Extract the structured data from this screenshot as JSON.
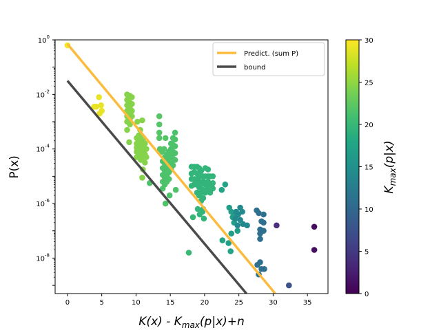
{
  "chart_data": {
    "type": "scatter",
    "title": "",
    "xlabel": "K(x) - K_max(p|x)+n",
    "ylabel": "P(x)",
    "yscale": "log",
    "xlim": [
      -1.8,
      38
    ],
    "ylim_log10": [
      -9.3,
      0
    ],
    "xticks": [
      0,
      5,
      10,
      15,
      20,
      25,
      30,
      35
    ],
    "yticks_log10": [
      0,
      -2,
      -4,
      -6,
      -8
    ],
    "legend": {
      "position": "top-right",
      "entries": [
        {
          "label": "Predict. (sum P)",
          "color": "#fbbc3d"
        },
        {
          "label": "bound",
          "color": "#4a4a4a"
        }
      ]
    },
    "colorbar": {
      "label": "K_max(p|x)",
      "range": [
        0,
        30
      ],
      "ticks": [
        0,
        5,
        10,
        15,
        20,
        25,
        30
      ],
      "colormap": "viridis"
    },
    "lines": [
      {
        "name": "Predict. (sum P)",
        "x": [
          0,
          30.3
        ],
        "log10_y": [
          -0.15,
          -9.3
        ]
      },
      {
        "name": "bound",
        "x": [
          0,
          26.1
        ],
        "log10_y": [
          -1.5,
          -9.3
        ]
      }
    ],
    "series": [
      {
        "name": "points",
        "columns": [
          "x",
          "log10_y",
          "kmax"
        ],
        "points": [
          [
            0,
            -0.2,
            29.5
          ],
          [
            4.2,
            -2.45,
            29
          ],
          [
            4.6,
            -2.1,
            29
          ],
          [
            4.9,
            -2.4,
            29
          ],
          [
            5.0,
            -2.6,
            29
          ],
          [
            4.7,
            -2.7,
            29
          ],
          [
            3.9,
            -2.45,
            29
          ],
          [
            8.7,
            -2.0,
            24.5
          ],
          [
            8.7,
            -2.2,
            24.5
          ],
          [
            8.7,
            -2.4,
            24.5
          ],
          [
            8.7,
            -2.6,
            24.5
          ],
          [
            8.7,
            -2.8,
            24.5
          ],
          [
            8.7,
            -3.0,
            24.5
          ],
          [
            8.7,
            -3.3,
            24.5
          ],
          [
            9.1,
            -2.05,
            24.5
          ],
          [
            9.1,
            -2.3,
            24.5
          ],
          [
            9.1,
            -2.5,
            24.5
          ],
          [
            9.1,
            -2.7,
            24.5
          ],
          [
            9.1,
            -2.9,
            24.5
          ],
          [
            9.1,
            -3.1,
            24.5
          ],
          [
            9.4,
            -2.1,
            24.5
          ],
          [
            9.4,
            -2.35,
            24.5
          ],
          [
            9.4,
            -2.6,
            24.5
          ],
          [
            9.4,
            -2.8,
            24.5
          ],
          [
            9.0,
            -3.75,
            24.5
          ],
          [
            10.2,
            -3.0,
            24.5
          ],
          [
            10.9,
            -2.95,
            24.5
          ],
          [
            10.6,
            -3.3,
            24.5
          ],
          [
            10.1,
            -3.6,
            24.5
          ],
          [
            10.1,
            -3.8,
            24.5
          ],
          [
            10.1,
            -3.95,
            24.5
          ],
          [
            10.1,
            -4.1,
            24.5
          ],
          [
            10.1,
            -4.3,
            24.5
          ],
          [
            10.4,
            -3.5,
            24.5
          ],
          [
            10.4,
            -3.7,
            24.5
          ],
          [
            10.4,
            -3.9,
            24.5
          ],
          [
            10.4,
            -4.05,
            24.5
          ],
          [
            10.4,
            -4.25,
            24.5
          ],
          [
            10.7,
            -3.6,
            24.5
          ],
          [
            10.7,
            -3.8,
            24.5
          ],
          [
            10.7,
            -4.0,
            24.5
          ],
          [
            10.7,
            -4.2,
            24.5
          ],
          [
            10.7,
            -4.4,
            24.5
          ],
          [
            11.0,
            -3.7,
            24.5
          ],
          [
            11.0,
            -3.9,
            24.5
          ],
          [
            11.0,
            -4.1,
            24.5
          ],
          [
            11.0,
            -4.3,
            24.5
          ],
          [
            11.3,
            -3.8,
            24.5
          ],
          [
            11.3,
            -4.0,
            24.5
          ],
          [
            11.3,
            -4.2,
            24.5
          ],
          [
            11.3,
            -4.5,
            24.5
          ],
          [
            11.5,
            -4.0,
            24.5
          ],
          [
            11.5,
            -4.3,
            24.5
          ],
          [
            11.0,
            -4.75,
            24.5
          ],
          [
            10.9,
            -5.05,
            24.5
          ],
          [
            13.4,
            -2.8,
            22
          ],
          [
            13.4,
            -3.1,
            22
          ],
          [
            13.4,
            -3.4,
            22
          ],
          [
            13.4,
            -3.6,
            22
          ],
          [
            14.3,
            -3.6,
            22
          ],
          [
            13.5,
            -4.0,
            22
          ],
          [
            13.8,
            -4.1,
            22
          ],
          [
            14.1,
            -4.0,
            22
          ],
          [
            13.9,
            -4.45,
            21.5
          ],
          [
            13.9,
            -4.7,
            21.5
          ],
          [
            13.9,
            -4.95,
            21.5
          ],
          [
            13.9,
            -5.2,
            21.5
          ],
          [
            13.9,
            -5.45,
            21.5
          ],
          [
            14.2,
            -4.3,
            21.5
          ],
          [
            14.2,
            -4.55,
            21.5
          ],
          [
            14.2,
            -4.8,
            21.5
          ],
          [
            14.2,
            -5.05,
            21.5
          ],
          [
            14.2,
            -5.3,
            21.5
          ],
          [
            14.5,
            -4.2,
            21.5
          ],
          [
            14.5,
            -4.45,
            21.5
          ],
          [
            14.5,
            -4.7,
            21.5
          ],
          [
            14.5,
            -4.95,
            21.5
          ],
          [
            14.5,
            -5.2,
            21.5
          ],
          [
            14.8,
            -4.1,
            21.5
          ],
          [
            14.8,
            -4.35,
            21.5
          ],
          [
            14.8,
            -4.6,
            21.5
          ],
          [
            14.8,
            -4.85,
            21.5
          ],
          [
            14.8,
            -5.1,
            21.5
          ],
          [
            15.1,
            -3.8,
            21.5
          ],
          [
            15.1,
            -4.0,
            21.5
          ],
          [
            15.1,
            -4.25,
            21.5
          ],
          [
            15.1,
            -4.5,
            21.5
          ],
          [
            15.1,
            -4.75,
            21.5
          ],
          [
            15.4,
            -3.6,
            21.5
          ],
          [
            15.4,
            -3.85,
            21.5
          ],
          [
            15.4,
            -4.1,
            21.5
          ],
          [
            15.4,
            -4.35,
            21.5
          ],
          [
            15.4,
            -4.6,
            21.5
          ],
          [
            15.7,
            -3.4,
            21.5
          ],
          [
            15.7,
            -3.65,
            21.5
          ],
          [
            15.7,
            -3.9,
            21.5
          ],
          [
            15.7,
            -4.15,
            21.5
          ],
          [
            15.7,
            -4.4,
            21.5
          ],
          [
            15.8,
            -5.5,
            21.5
          ],
          [
            14.9,
            -5.7,
            21.5
          ],
          [
            12.0,
            -5.25,
            21.5
          ],
          [
            14.3,
            -6.0,
            21.5
          ],
          [
            17.7,
            -7.8,
            20
          ],
          [
            18.3,
            -6.5,
            20
          ],
          [
            18.1,
            -4.65,
            19.5
          ],
          [
            18.1,
            -4.9,
            19.5
          ],
          [
            18.1,
            -5.1,
            19.5
          ],
          [
            18.1,
            -5.35,
            19.5
          ],
          [
            18.5,
            -4.65,
            19.5
          ],
          [
            18.5,
            -4.85,
            19.5
          ],
          [
            18.5,
            -5.1,
            19.5
          ],
          [
            18.5,
            -5.3,
            19.5
          ],
          [
            18.9,
            -4.65,
            19.5
          ],
          [
            18.9,
            -4.9,
            19.5
          ],
          [
            18.9,
            -5.1,
            19.5
          ],
          [
            18.9,
            -5.3,
            19.5
          ],
          [
            18.9,
            -5.6,
            19.5
          ],
          [
            19.2,
            -4.7,
            19.5
          ],
          [
            19.2,
            -4.9,
            19.5
          ],
          [
            19.2,
            -5.2,
            19.5
          ],
          [
            19.2,
            -5.4,
            19.5
          ],
          [
            19.2,
            -5.7,
            19.5
          ],
          [
            19.5,
            -4.8,
            19.5
          ],
          [
            19.5,
            -5.0,
            19.5
          ],
          [
            19.5,
            -5.3,
            19.5
          ],
          [
            19.5,
            -5.6,
            19.5
          ],
          [
            19.5,
            -5.9,
            19.5
          ],
          [
            19.8,
            -5.0,
            19.5
          ],
          [
            19.8,
            -5.2,
            19.5
          ],
          [
            19.8,
            -5.5,
            19.5
          ],
          [
            19.8,
            -5.8,
            19.5
          ],
          [
            19.8,
            -6.2,
            19.5
          ],
          [
            20.1,
            -4.7,
            19.5
          ],
          [
            20.1,
            -5.0,
            19.5
          ],
          [
            20.1,
            -5.3,
            19.5
          ],
          [
            20.1,
            -5.6,
            19.5
          ],
          [
            20.5,
            -4.75,
            19.5
          ],
          [
            20.5,
            -5.0,
            19.5
          ],
          [
            20.5,
            -5.2,
            19.5
          ],
          [
            20.5,
            -5.45,
            19.5
          ],
          [
            20.8,
            -5.0,
            19.5
          ],
          [
            20.8,
            -5.3,
            19.5
          ],
          [
            20.8,
            -5.6,
            19.5
          ],
          [
            21.2,
            -5.0,
            19.5
          ],
          [
            21.2,
            -5.25,
            19.5
          ],
          [
            21.2,
            -5.45,
            19.5
          ],
          [
            19.0,
            -6.2,
            19.5
          ],
          [
            19.3,
            -6.4,
            19.5
          ],
          [
            19.7,
            -6.3,
            19.5
          ],
          [
            19.9,
            -6.55,
            19.5
          ],
          [
            22.5,
            -5.5,
            17.5
          ],
          [
            23.0,
            -5.3,
            17.5
          ],
          [
            22.6,
            -7.35,
            17.5
          ],
          [
            23.8,
            -7.75,
            17.5
          ],
          [
            23.6,
            -6.15,
            16.5
          ],
          [
            23.9,
            -6.3,
            16.5
          ],
          [
            24.1,
            -6.5,
            16.5
          ],
          [
            24.3,
            -6.7,
            16.5
          ],
          [
            23.9,
            -7.1,
            16.5
          ],
          [
            23.5,
            -7.45,
            16.5
          ],
          [
            24.8,
            -7.0,
            16.5
          ],
          [
            24.3,
            -6.45,
            16.5
          ],
          [
            24.6,
            -6.3,
            14
          ],
          [
            24.9,
            -6.4,
            14
          ],
          [
            25.2,
            -6.6,
            14
          ],
          [
            25.5,
            -6.3,
            14
          ],
          [
            25.2,
            -6.15,
            14
          ],
          [
            24.5,
            -6.55,
            14
          ],
          [
            24.8,
            -6.8,
            14
          ],
          [
            25.6,
            -6.75,
            14
          ],
          [
            26.2,
            -6.8,
            14
          ],
          [
            27.6,
            -6.25,
            11
          ],
          [
            27.9,
            -6.35,
            11
          ],
          [
            28.6,
            -6.4,
            11
          ],
          [
            28.3,
            -6.65,
            11
          ],
          [
            28.6,
            -6.7,
            11
          ],
          [
            28.1,
            -6.95,
            11
          ],
          [
            28.1,
            -7.1,
            11
          ],
          [
            28.1,
            -7.3,
            11
          ],
          [
            28.6,
            -7.0,
            11
          ],
          [
            27.7,
            -8.25,
            11
          ],
          [
            28.3,
            -8.4,
            11
          ],
          [
            28.7,
            -8.4,
            11
          ],
          [
            28.1,
            -8.15,
            11
          ],
          [
            27.9,
            -8.6,
            11
          ],
          [
            30.5,
            -6.8,
            4
          ],
          [
            32.3,
            -9.0,
            7.5
          ],
          [
            36.0,
            -6.85,
            1
          ],
          [
            36.0,
            -7.7,
            1
          ]
        ]
      }
    ]
  }
}
